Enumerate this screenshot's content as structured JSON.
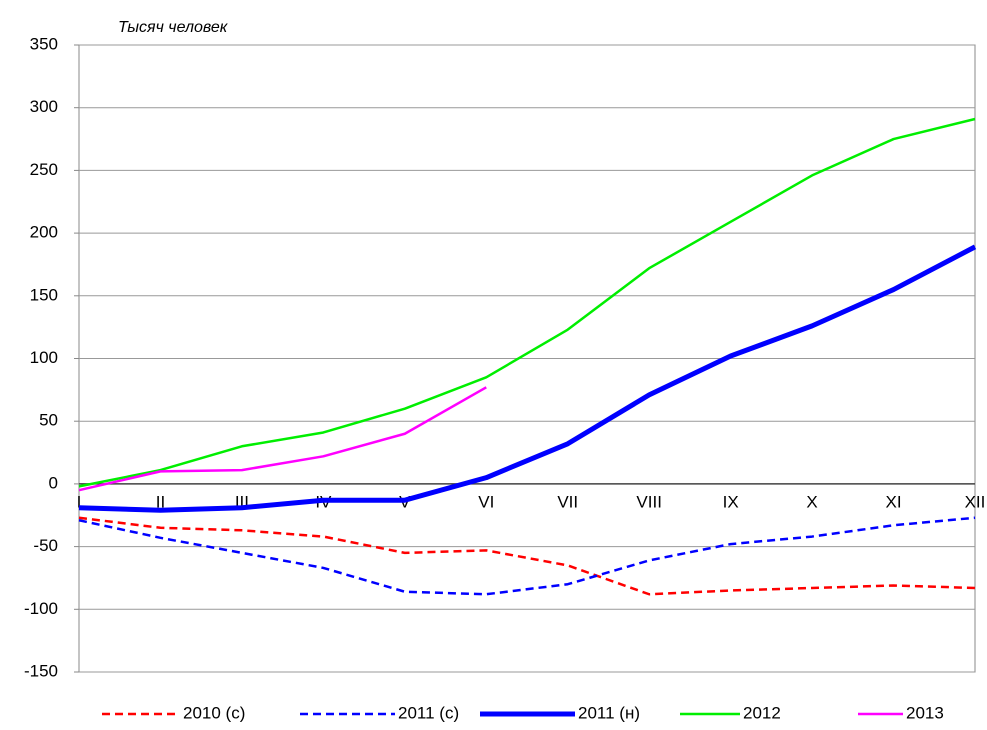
{
  "chart_data": {
    "type": "line",
    "y_label": "Тысяч человек",
    "categories": [
      "I",
      "II",
      "III",
      "IV",
      "V",
      "VI",
      "VII",
      "VIII",
      "IX",
      "X",
      "XI",
      "XII"
    ],
    "series": [
      {
        "name": "2010 (с)",
        "color": "#ff0000",
        "style": "dashed",
        "width": 2.5,
        "values": [
          -27,
          -35,
          -37,
          -42,
          -55,
          -53,
          -65,
          -88,
          -85,
          -83,
          -81,
          -83
        ]
      },
      {
        "name": "2011 (с)",
        "color": "#0000ff",
        "style": "dashed",
        "width": 2.5,
        "values": [
          -29,
          -43,
          -55,
          -67,
          -86,
          -88,
          -80,
          -61,
          -48,
          -42,
          -33,
          -27
        ]
      },
      {
        "name": "2011 (н)",
        "color": "#0000ff",
        "style": "solid",
        "width": 5,
        "values": [
          -19,
          -21,
          -19,
          -13,
          -13,
          5,
          32,
          71,
          102,
          126,
          155,
          189
        ]
      },
      {
        "name": "2012",
        "color": "#00ee00",
        "style": "solid",
        "width": 2.5,
        "values": [
          -2,
          11,
          30,
          41,
          60,
          85,
          123,
          172,
          209,
          246,
          275,
          291
        ]
      },
      {
        "name": "2013",
        "color": "#ff00ff",
        "style": "solid",
        "width": 2.5,
        "values": [
          -5,
          10,
          11,
          22,
          40,
          77,
          null,
          null,
          null,
          null,
          null,
          null
        ]
      }
    ],
    "ylim": [
      -150,
      350
    ],
    "yticks": [
      -150,
      -100,
      -50,
      0,
      50,
      100,
      150,
      200,
      250,
      300,
      350
    ],
    "grid": true,
    "legend": "bottom"
  }
}
